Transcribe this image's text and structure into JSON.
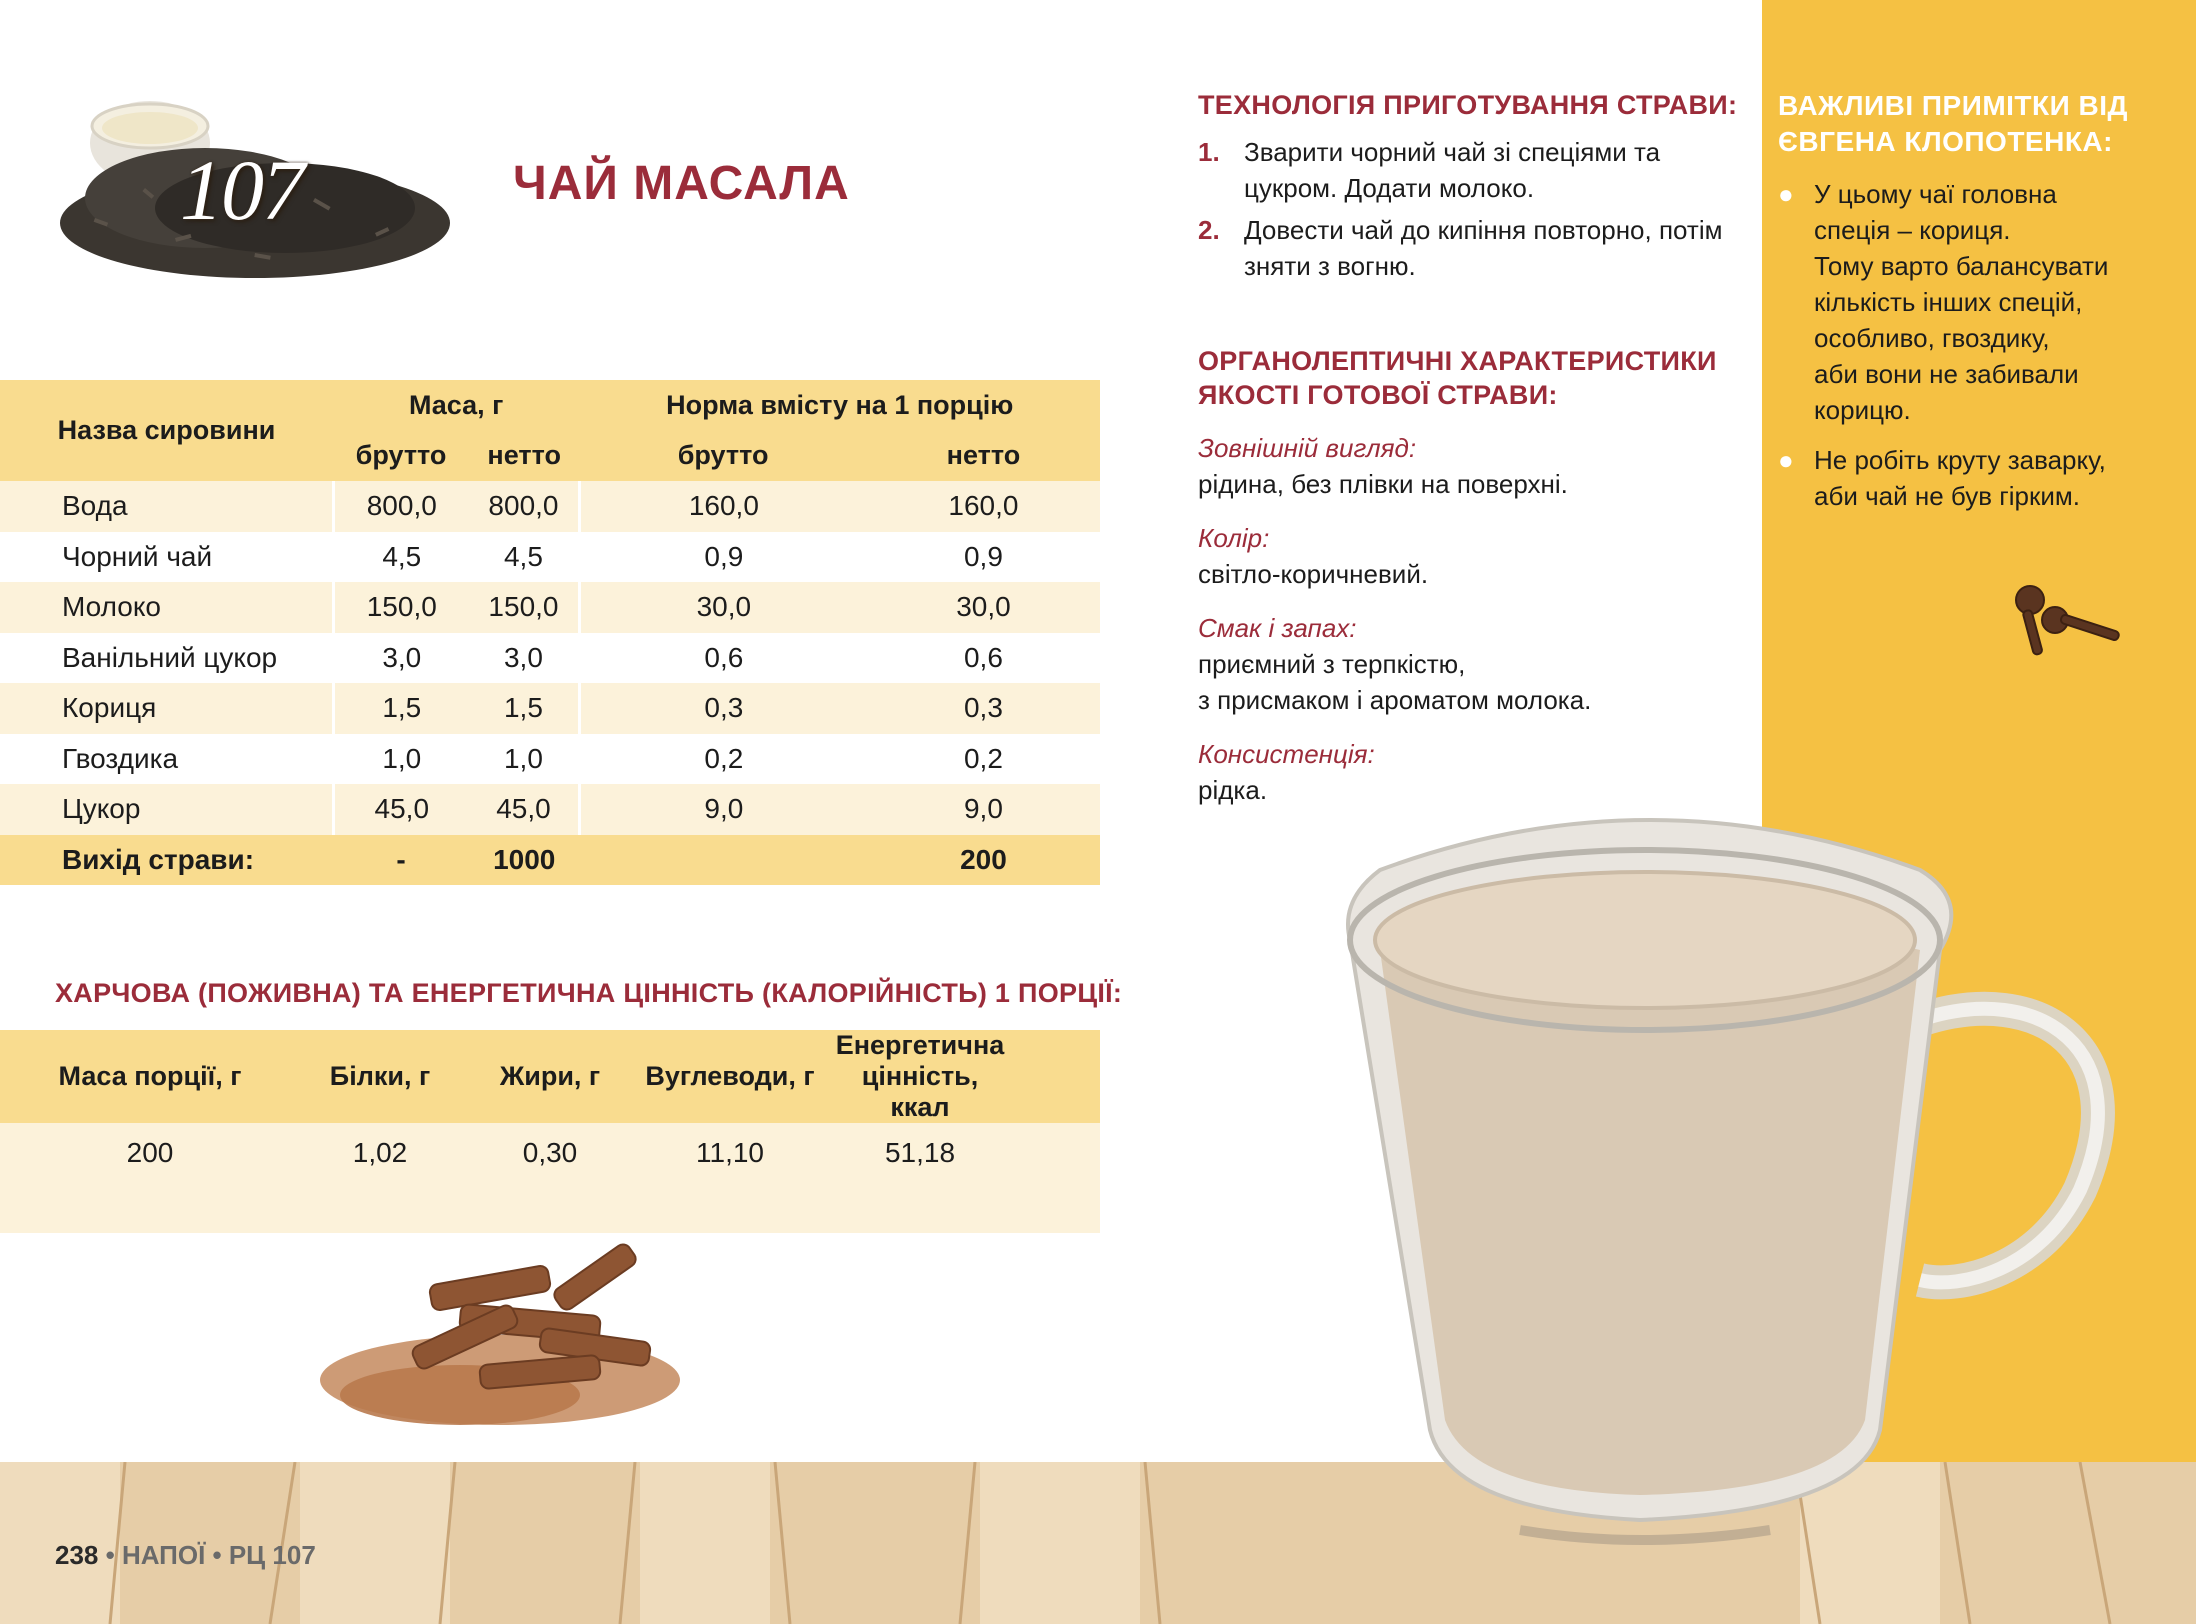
{
  "header": {
    "recipe_number": "107",
    "title": "ЧАЙ МАСАЛА"
  },
  "ingredients_table": {
    "col_name": "Назва сировини",
    "col_mass": "Маса, г",
    "col_norm": "Норма вмісту на 1 порцію",
    "sub_gross": "брутто",
    "sub_net": "нетто",
    "rows": [
      {
        "name": "Вода",
        "gross": "800,0",
        "net": "800,0",
        "portion_gross": "160,0",
        "portion_net": "160,0"
      },
      {
        "name": "Чорний чай",
        "gross": "4,5",
        "net": "4,5",
        "portion_gross": "0,9",
        "portion_net": "0,9"
      },
      {
        "name": "Молоко",
        "gross": "150,0",
        "net": "150,0",
        "portion_gross": "30,0",
        "portion_net": "30,0"
      },
      {
        "name": "Ванільний цукор",
        "gross": "3,0",
        "net": "3,0",
        "portion_gross": "0,6",
        "portion_net": "0,6"
      },
      {
        "name": "Кориця",
        "gross": "1,5",
        "net": "1,5",
        "portion_gross": "0,3",
        "portion_net": "0,3"
      },
      {
        "name": "Гвоздика",
        "gross": "1,0",
        "net": "1,0",
        "portion_gross": "0,2",
        "portion_net": "0,2"
      },
      {
        "name": "Цукор",
        "gross": "45,0",
        "net": "45,0",
        "portion_gross": "9,0",
        "portion_net": "9,0"
      }
    ],
    "total": {
      "name": "Вихід страви:",
      "gross": "-",
      "net": "1000",
      "portion_gross": "",
      "portion_net": "200"
    }
  },
  "nutrition": {
    "heading": "ХАРЧОВА (ПОЖИВНА) ТА ЕНЕРГЕТИЧНА ЦІННІСТЬ (КАЛОРІЙНІСТЬ) 1 ПОРЦІЇ:",
    "headers": [
      "Маса порції, г",
      "Білки, г",
      "Жири, г",
      "Вуглеводи, г",
      "Енергетична цінність, ккал"
    ],
    "values": [
      "200",
      "1,02",
      "0,30",
      "11,10",
      "51,18"
    ]
  },
  "technology": {
    "heading": "ТЕХНОЛОГІЯ ПРИГОТУВАННЯ СТРАВИ:",
    "steps": [
      {
        "num": "1.",
        "text": "Зварити чорний чай зі спеціями та цукром. Додати молоко."
      },
      {
        "num": "2.",
        "text": "Довести чай до кипіння повторно, потім зняти з вогню."
      }
    ]
  },
  "organoleptic": {
    "heading": "ОРГАНОЛЕПТИЧНІ ХАРАКТЕРИСТИКИ ЯКОСТІ ГОТОВОЇ СТРАВИ:",
    "items": [
      {
        "label": "Зовнішній вигляд:",
        "value": "рідина, без плівки на поверхні."
      },
      {
        "label": "Колір:",
        "value": "світло-коричневий."
      },
      {
        "label": "Смак і запах:",
        "value": "приємний з терпкістю,\nз присмаком і ароматом молока."
      },
      {
        "label": "Консистенція:",
        "value": "рідка."
      }
    ]
  },
  "notes": {
    "heading": "ВАЖЛИВІ ПРИМІТКИ ВІД ЄВГЕНА КЛОПОТЕНКА:",
    "items": [
      "У цьому чаї головна\nспеція – кориця.\nТому варто балансувати\nкількість інших спецій,\nособливо, гвоздику,\nаби вони не забивали\nкорицю.",
      "Не робіть круту заварку,\nаби чай не був гірким."
    ]
  },
  "footer": {
    "page": "238",
    "section": "НАПОЇ",
    "code": "РЦ 107",
    "bullet": "•"
  },
  "colors": {
    "accent": "#9b2c3a",
    "table_header": "#f9dc8f",
    "table_row": "#fcf2da",
    "panel": "#f5c143"
  }
}
